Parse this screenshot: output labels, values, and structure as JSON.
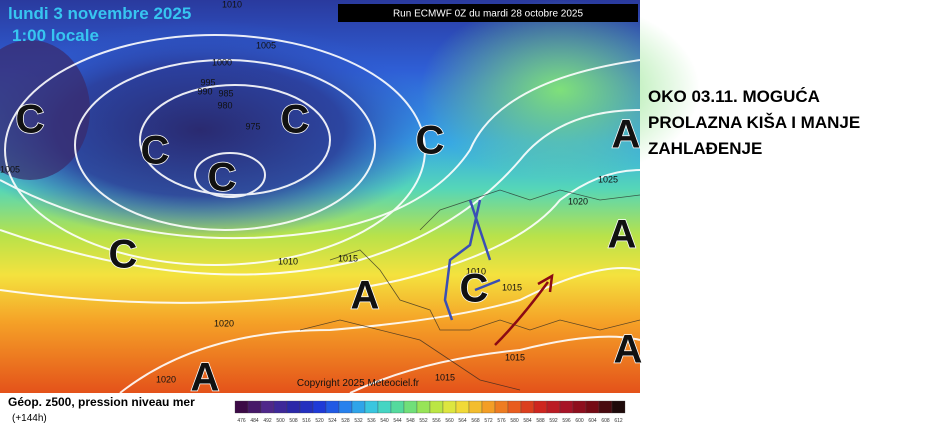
{
  "map": {
    "date": "lundi 3 novembre 2025",
    "time": "1:00 locale",
    "run": "Run ECMWF 0Z du mardi 28 octobre 2025",
    "copyright": "Copyright 2025 Meteociel.fr",
    "systems": [
      "C",
      "C",
      "C",
      "C",
      "C",
      "C",
      "C",
      "A",
      "A",
      "A",
      "A",
      "A"
    ],
    "isobar_labels": [
      1010,
      1005,
      1000,
      995,
      990,
      985,
      980,
      975,
      1005,
      1010,
      1015,
      1010,
      1015,
      1020,
      1025,
      1020,
      1020,
      1015,
      1015
    ]
  },
  "annotation": {
    "lines": [
      "OKO 03.11. MOGUĆA",
      "PROLAZNA KIŠA I MANJE",
      "ZAHLAĐENJE"
    ]
  },
  "legend": {
    "title": "Géop. z500, pression niveau mer",
    "lead": "(+144h)",
    "scale": [
      476,
      484,
      492,
      500,
      508,
      516,
      520,
      524,
      528,
      532,
      536,
      540,
      544,
      548,
      552,
      556,
      560,
      564,
      568,
      572,
      576,
      580,
      584,
      588,
      592,
      596,
      600,
      604,
      608,
      612
    ]
  }
}
